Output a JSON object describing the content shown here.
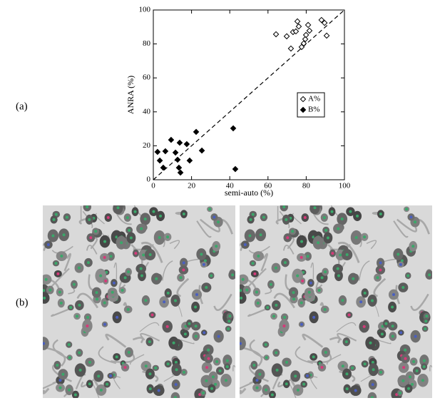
{
  "panel_labels": [
    "(a)",
    "(b)"
  ],
  "chart_data": {
    "type": "scatter",
    "xlabel": "semi-auto (%)",
    "ylabel": "ANRA (%)",
    "xlim": [
      0,
      100
    ],
    "ylim": [
      0,
      100
    ],
    "xticks": [
      0,
      20,
      40,
      60,
      80,
      100
    ],
    "yticks": [
      0,
      20,
      40,
      60,
      80,
      100
    ],
    "legend": "right",
    "diagonal": true,
    "series": [
      {
        "name": "A%",
        "marker": "open-diamond",
        "color": "#000000",
        "x": [
          64.2,
          69.8,
          72.0,
          73.1,
          74.6,
          75.4,
          76.1,
          77.6,
          78.7,
          79.5,
          79.9,
          81.0,
          81.7,
          88.0,
          89.6,
          90.7
        ],
        "y": [
          85.7,
          84.5,
          77.3,
          87.0,
          87.4,
          93.3,
          90.3,
          78.2,
          80.3,
          82.8,
          85.3,
          91.2,
          87.8,
          94.1,
          92.4,
          84.9
        ]
      },
      {
        "name": "B%",
        "marker": "filled-diamond",
        "color": "#000000",
        "x": [
          2.2,
          3.4,
          5.2,
          6.3,
          9.3,
          11.6,
          12.7,
          13.8,
          13.4,
          14.2,
          17.5,
          19.0,
          22.4,
          25.4,
          41.8,
          42.9
        ],
        "y": [
          16.4,
          11.3,
          7.1,
          16.8,
          23.5,
          16.0,
          11.8,
          21.8,
          7.1,
          4.2,
          21.0,
          11.3,
          28.2,
          17.2,
          30.3,
          6.3
        ]
      }
    ]
  }
}
